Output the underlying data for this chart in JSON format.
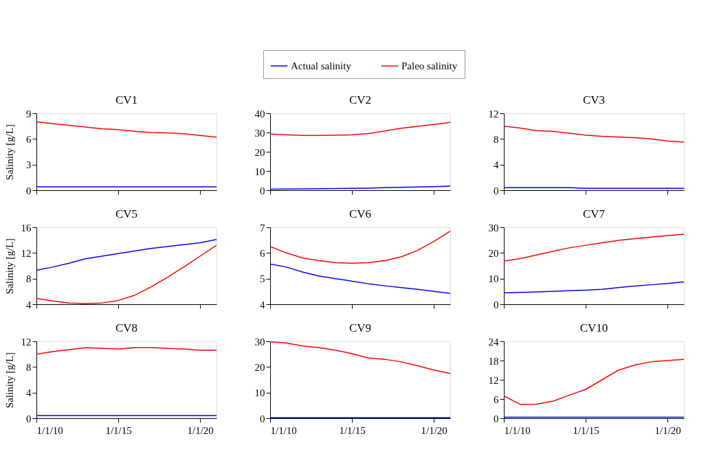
{
  "chart_data": [
    {
      "type": "line",
      "title": "CV1",
      "ylabel": "Salinity [g/L]",
      "legend": "top",
      "tick_labels": "y",
      "x": [
        "2010-01-01",
        "2011-01-01",
        "2012-01-01",
        "2013-01-01",
        "2014-01-01",
        "2015-01-01",
        "2016-01-01",
        "2017-01-01",
        "2018-01-01",
        "2019-01-01",
        "2020-01-01",
        "2021-01-01"
      ],
      "xlim": [
        "2010-01-01",
        "2021-01-01"
      ],
      "xticks": [
        {
          "value": "2010-01-01",
          "label": "1/1/10"
        },
        {
          "value": "2015-01-01",
          "label": "1/1/15"
        },
        {
          "value": "2020-01-01",
          "label": "1/1/20"
        }
      ],
      "ylim": [
        0,
        9
      ],
      "yticks": [
        0,
        3,
        6,
        9
      ],
      "series": [
        {
          "name": "Actual salinity",
          "color": "#0000ff",
          "values": [
            0.4,
            0.4,
            0.4,
            0.4,
            0.4,
            0.4,
            0.4,
            0.4,
            0.4,
            0.4,
            0.4,
            0.4
          ]
        },
        {
          "name": "Paleo salinity",
          "color": "#ff0000",
          "values": [
            8.0,
            7.8,
            7.6,
            7.4,
            7.2,
            7.1,
            6.9,
            6.75,
            6.7,
            6.6,
            6.4,
            6.2
          ]
        }
      ]
    },
    {
      "type": "line",
      "title": "CV2",
      "legend": "top",
      "tick_labels": "y",
      "x": [
        "2010-01-01",
        "2011-01-01",
        "2012-01-01",
        "2013-01-01",
        "2014-01-01",
        "2015-01-01",
        "2016-01-01",
        "2017-01-01",
        "2018-01-01",
        "2019-01-01",
        "2020-01-01",
        "2021-01-01"
      ],
      "xlim": [
        "2010-01-01",
        "2021-01-01"
      ],
      "xticks": [
        {
          "value": "2010-01-01",
          "label": "1/1/10"
        },
        {
          "value": "2015-01-01",
          "label": "1/1/15"
        },
        {
          "value": "2020-01-01",
          "label": "1/1/20"
        }
      ],
      "ylim": [
        0,
        40
      ],
      "yticks": [
        0,
        10,
        20,
        30,
        40
      ],
      "series": [
        {
          "name": "Actual salinity",
          "color": "#0000ff",
          "values": [
            0.5,
            0.6,
            0.7,
            0.8,
            0.9,
            1.0,
            1.1,
            1.3,
            1.5,
            1.7,
            1.9,
            2.1
          ]
        },
        {
          "name": "Paleo salinity",
          "color": "#ff0000",
          "values": [
            29.2,
            28.8,
            28.5,
            28.5,
            28.7,
            28.8,
            29.5,
            30.8,
            32.2,
            33.2,
            34.2,
            35.3
          ]
        }
      ]
    },
    {
      "type": "line",
      "title": "CV3",
      "legend": "top",
      "tick_labels": "y",
      "x": [
        "2010-01-01",
        "2011-01-01",
        "2012-01-01",
        "2013-01-01",
        "2014-01-01",
        "2015-01-01",
        "2016-01-01",
        "2017-01-01",
        "2018-01-01",
        "2019-01-01",
        "2020-01-01",
        "2021-01-01"
      ],
      "xlim": [
        "2010-01-01",
        "2021-01-01"
      ],
      "xticks": [
        {
          "value": "2010-01-01",
          "label": "1/1/10"
        },
        {
          "value": "2015-01-01",
          "label": "1/1/15"
        },
        {
          "value": "2020-01-01",
          "label": "1/1/20"
        }
      ],
      "ylim": [
        0,
        12
      ],
      "yticks": [
        0,
        4,
        8,
        12
      ],
      "series": [
        {
          "name": "Actual salinity",
          "color": "#0000ff",
          "values": [
            0.4,
            0.4,
            0.4,
            0.4,
            0.4,
            0.3,
            0.3,
            0.3,
            0.3,
            0.3,
            0.3,
            0.3
          ]
        },
        {
          "name": "Paleo salinity",
          "color": "#ff0000",
          "values": [
            10.0,
            9.7,
            9.3,
            9.2,
            8.9,
            8.6,
            8.4,
            8.3,
            8.2,
            8.0,
            7.7,
            7.5
          ]
        }
      ]
    },
    {
      "type": "line",
      "title": "CV5",
      "ylabel": "Salinity [g/L]",
      "legend": "top",
      "tick_labels": "y",
      "x": [
        "2010-01-01",
        "2011-01-01",
        "2012-01-01",
        "2013-01-01",
        "2014-01-01",
        "2015-01-01",
        "2016-01-01",
        "2017-01-01",
        "2018-01-01",
        "2019-01-01",
        "2020-01-01",
        "2021-01-01"
      ],
      "xlim": [
        "2010-01-01",
        "2021-01-01"
      ],
      "xticks": [
        {
          "value": "2010-01-01",
          "label": "1/1/10"
        },
        {
          "value": "2015-01-01",
          "label": "1/1/15"
        },
        {
          "value": "2020-01-01",
          "label": "1/1/20"
        }
      ],
      "ylim": [
        4,
        16
      ],
      "yticks": [
        4,
        8,
        12,
        16
      ],
      "series": [
        {
          "name": "Actual salinity",
          "color": "#0000ff",
          "values": [
            9.3,
            9.8,
            10.4,
            11.1,
            11.5,
            11.9,
            12.3,
            12.7,
            13.0,
            13.3,
            13.6,
            14.1
          ]
        },
        {
          "name": "Paleo salinity",
          "color": "#ff0000",
          "values": [
            4.9,
            4.5,
            4.2,
            4.1,
            4.2,
            4.6,
            5.4,
            6.7,
            8.2,
            9.8,
            11.5,
            13.2
          ]
        }
      ]
    },
    {
      "type": "line",
      "title": "CV6",
      "legend": "top",
      "tick_labels": "y",
      "x": [
        "2010-01-01",
        "2011-01-01",
        "2012-01-01",
        "2013-01-01",
        "2014-01-01",
        "2015-01-01",
        "2016-01-01",
        "2017-01-01",
        "2018-01-01",
        "2019-01-01",
        "2020-01-01",
        "2021-01-01"
      ],
      "xlim": [
        "2010-01-01",
        "2021-01-01"
      ],
      "xticks": [
        {
          "value": "2010-01-01",
          "label": "1/1/10"
        },
        {
          "value": "2015-01-01",
          "label": "1/1/15"
        },
        {
          "value": "2020-01-01",
          "label": "1/1/20"
        }
      ],
      "ylim": [
        4,
        7
      ],
      "yticks": [
        4,
        5,
        6,
        7
      ],
      "series": [
        {
          "name": "Actual salinity",
          "color": "#0000ff",
          "values": [
            5.57,
            5.45,
            5.25,
            5.1,
            5.0,
            4.9,
            4.8,
            4.72,
            4.65,
            4.58,
            4.5,
            4.42
          ]
        },
        {
          "name": "Paleo salinity",
          "color": "#ff0000",
          "values": [
            6.25,
            6.0,
            5.8,
            5.7,
            5.62,
            5.6,
            5.62,
            5.7,
            5.85,
            6.1,
            6.45,
            6.85
          ]
        }
      ]
    },
    {
      "type": "line",
      "title": "CV7",
      "legend": "top",
      "tick_labels": "y",
      "x": [
        "2010-01-01",
        "2011-01-01",
        "2012-01-01",
        "2013-01-01",
        "2014-01-01",
        "2015-01-01",
        "2016-01-01",
        "2017-01-01",
        "2018-01-01",
        "2019-01-01",
        "2020-01-01",
        "2021-01-01"
      ],
      "xlim": [
        "2010-01-01",
        "2021-01-01"
      ],
      "xticks": [
        {
          "value": "2010-01-01",
          "label": "1/1/10"
        },
        {
          "value": "2015-01-01",
          "label": "1/1/15"
        },
        {
          "value": "2020-01-01",
          "label": "1/1/20"
        }
      ],
      "ylim": [
        0,
        30
      ],
      "yticks": [
        0,
        10,
        20,
        30
      ],
      "series": [
        {
          "name": "Actual salinity",
          "color": "#0000ff",
          "values": [
            4.4,
            4.6,
            4.8,
            5.0,
            5.3,
            5.5,
            5.8,
            6.5,
            7.1,
            7.6,
            8.1,
            8.7
          ]
        },
        {
          "name": "Paleo salinity",
          "color": "#ff0000",
          "values": [
            16.8,
            17.8,
            19.2,
            20.6,
            22.0,
            23.0,
            24.0,
            24.9,
            25.6,
            26.2,
            26.8,
            27.3
          ]
        }
      ]
    },
    {
      "type": "line",
      "title": "CV8",
      "ylabel": "Salinity [g/L]",
      "legend": "top",
      "x": [
        "2010-01-01",
        "2011-01-01",
        "2012-01-01",
        "2013-01-01",
        "2014-01-01",
        "2015-01-01",
        "2016-01-01",
        "2017-01-01",
        "2018-01-01",
        "2019-01-01",
        "2020-01-01",
        "2021-01-01"
      ],
      "xlim": [
        "2010-01-01",
        "2021-01-01"
      ],
      "xticks": [
        {
          "value": "2010-01-01",
          "label": "1/1/10"
        },
        {
          "value": "2015-01-01",
          "label": "1/1/15"
        },
        {
          "value": "2020-01-01",
          "label": "1/1/20"
        }
      ],
      "ylim": [
        0,
        12
      ],
      "yticks": [
        0,
        4,
        8,
        12
      ],
      "series": [
        {
          "name": "Actual salinity",
          "color": "#0000ff",
          "values": [
            0.4,
            0.4,
            0.4,
            0.4,
            0.4,
            0.4,
            0.4,
            0.4,
            0.4,
            0.4,
            0.4,
            0.4
          ]
        },
        {
          "name": "Paleo salinity",
          "color": "#ff0000",
          "values": [
            10.0,
            10.4,
            10.7,
            11.0,
            10.9,
            10.8,
            11.0,
            11.0,
            10.9,
            10.8,
            10.6,
            10.6
          ]
        }
      ]
    },
    {
      "type": "line",
      "title": "CV9",
      "legend": "top",
      "x": [
        "2010-01-01",
        "2011-01-01",
        "2012-01-01",
        "2013-01-01",
        "2014-01-01",
        "2015-01-01",
        "2016-01-01",
        "2017-01-01",
        "2018-01-01",
        "2019-01-01",
        "2020-01-01",
        "2021-01-01"
      ],
      "xlim": [
        "2010-01-01",
        "2021-01-01"
      ],
      "xticks": [
        {
          "value": "2010-01-01",
          "label": "1/1/10"
        },
        {
          "value": "2015-01-01",
          "label": "1/1/15"
        },
        {
          "value": "2020-01-01",
          "label": "1/1/20"
        }
      ],
      "ylim": [
        0,
        30
      ],
      "yticks": [
        0,
        10,
        20,
        30
      ],
      "series": [
        {
          "name": "Actual salinity",
          "color": "#0000ff",
          "values": [
            0.2,
            0.2,
            0.2,
            0.2,
            0.2,
            0.2,
            0.2,
            0.2,
            0.2,
            0.2,
            0.2,
            0.2
          ]
        },
        {
          "name": "Paleo salinity",
          "color": "#ff0000",
          "values": [
            29.8,
            29.3,
            28.2,
            27.5,
            26.5,
            25.2,
            23.5,
            23.0,
            22.0,
            20.5,
            18.8,
            17.4
          ]
        }
      ]
    },
    {
      "type": "line",
      "title": "CV10",
      "legend": "top",
      "x": [
        "2010-01-01",
        "2011-01-01",
        "2012-01-01",
        "2013-01-01",
        "2014-01-01",
        "2015-01-01",
        "2016-01-01",
        "2017-01-01",
        "2018-01-01",
        "2019-01-01",
        "2020-01-01",
        "2021-01-01"
      ],
      "xlim": [
        "2010-01-01",
        "2021-01-01"
      ],
      "xticks": [
        {
          "value": "2010-01-01",
          "label": "1/1/10"
        },
        {
          "value": "2015-01-01",
          "label": "1/1/15"
        },
        {
          "value": "2020-01-01",
          "label": "1/1/20"
        }
      ],
      "ylim": [
        0,
        24
      ],
      "yticks": [
        0,
        6,
        12,
        18,
        24
      ],
      "series": [
        {
          "name": "Actual salinity",
          "color": "#0000ff",
          "values": [
            0.3,
            0.3,
            0.3,
            0.3,
            0.3,
            0.3,
            0.3,
            0.3,
            0.3,
            0.3,
            0.3,
            0.3
          ]
        },
        {
          "name": "Paleo salinity",
          "color": "#ff0000",
          "values": [
            7.0,
            4.3,
            4.4,
            5.3,
            7.2,
            9.0,
            12.0,
            15.0,
            16.6,
            17.6,
            18.0,
            18.4
          ]
        }
      ]
    }
  ]
}
